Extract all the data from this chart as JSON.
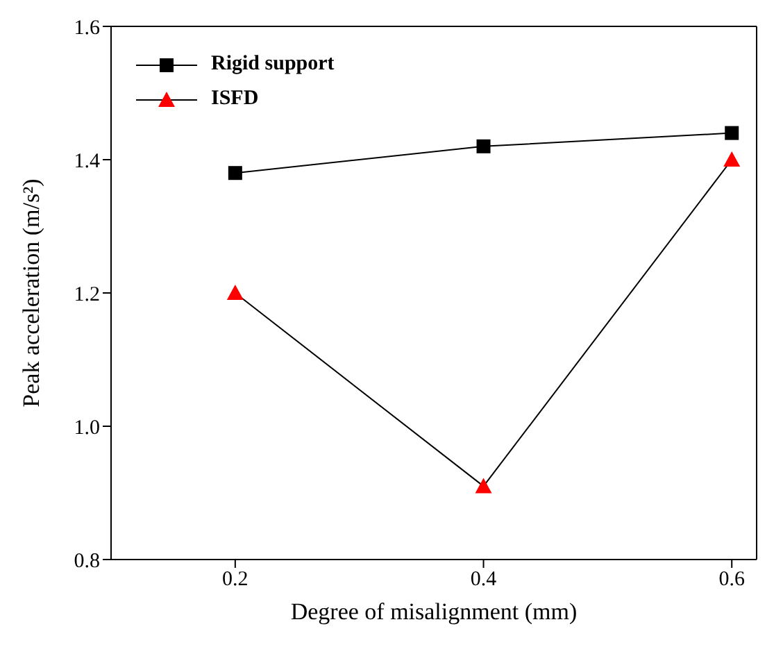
{
  "chart_data": {
    "type": "line",
    "xlabel": "Degree of misalignment (mm)",
    "ylabel": "Peak acceleration (m/s²)",
    "x": [
      0.2,
      0.4,
      0.6
    ],
    "series": [
      {
        "name": "Rigid support",
        "color": "#000000",
        "marker": "square",
        "values": [
          1.38,
          1.42,
          1.44
        ]
      },
      {
        "name": "ISFD",
        "color": "#ff0000",
        "marker": "triangle",
        "values": [
          1.2,
          0.91,
          1.4
        ]
      }
    ],
    "xlim": [
      0.1,
      0.62
    ],
    "xticks": [
      0.2,
      0.4,
      0.6
    ],
    "ylim": [
      0.8,
      1.6
    ],
    "yticks": [
      0.8,
      {
        "value": 1.0,
        "label": "1.0"
      },
      1.2,
      1.4,
      1.6
    ],
    "grid": false,
    "legend": "top left",
    "line_style": "solid"
  }
}
